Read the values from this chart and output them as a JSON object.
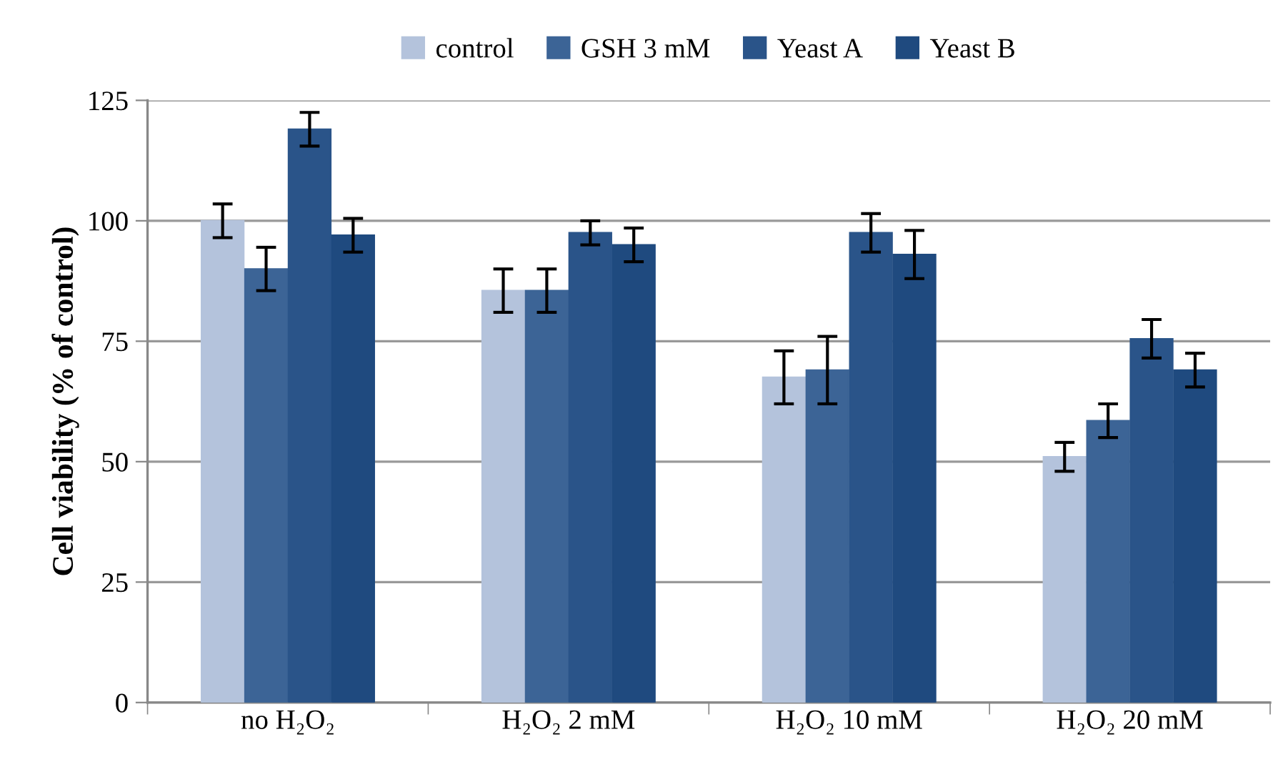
{
  "chart_data": {
    "type": "bar",
    "ylabel": "Cell viability (% of control)",
    "categories": [
      "no H₂O₂",
      "H₂O₂ 2 mM",
      "H₂O₂ 10 mM",
      "H₂O₂ 20 mM"
    ],
    "series": [
      {
        "name": "control",
        "color": "#b4c3dc",
        "values": [
          100,
          85.5,
          67.5,
          51
        ],
        "errors": [
          3.5,
          4.5,
          5.5,
          3
        ]
      },
      {
        "name": "GSH 3 mM",
        "color": "#3c6496",
        "values": [
          90,
          85.5,
          69,
          58.5
        ],
        "errors": [
          4.5,
          4.5,
          7,
          3.5
        ]
      },
      {
        "name": "Yeast A",
        "color": "#2a5489",
        "values": [
          119,
          97.5,
          97.5,
          75.5
        ],
        "errors": [
          3.5,
          2.5,
          4,
          4
        ]
      },
      {
        "name": "Yeast B",
        "color": "#1f4a7f",
        "values": [
          97,
          95,
          93,
          69
        ],
        "errors": [
          3.5,
          3.5,
          5,
          3.5
        ]
      }
    ],
    "ylim": [
      0,
      125
    ],
    "yticks": [
      0,
      25,
      50,
      75,
      100,
      125
    ],
    "grid": "y",
    "legend": "top"
  }
}
